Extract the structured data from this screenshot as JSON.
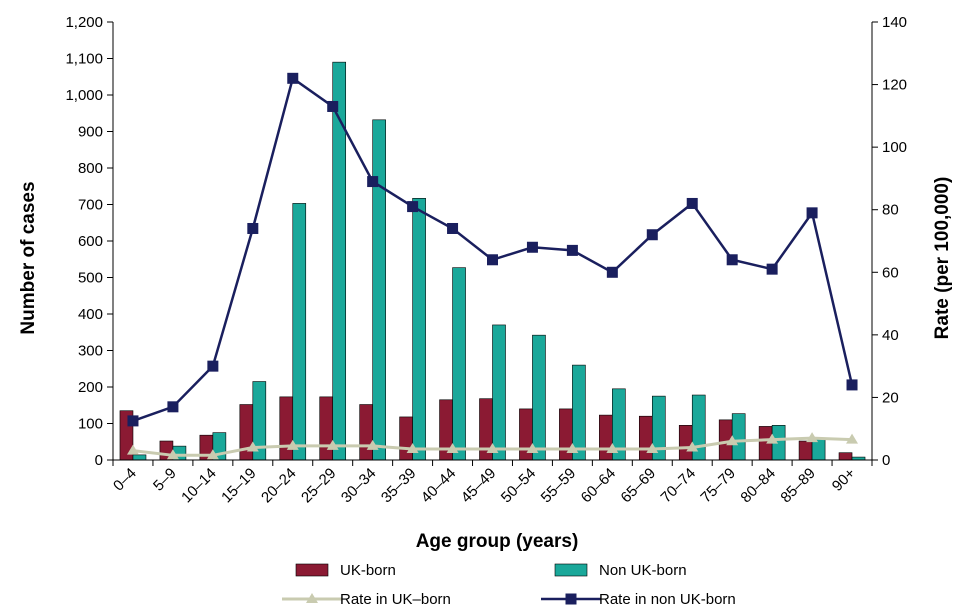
{
  "chart_data": {
    "type": "bar",
    "categories": [
      "0–4",
      "5–9",
      "10–14",
      "15–19",
      "20–24",
      "25–29",
      "30–34",
      "35–39",
      "40–44",
      "45–49",
      "50–54",
      "55–59",
      "60–64",
      "65–69",
      "70–74",
      "75–79",
      "80–84",
      "85–89",
      "90+"
    ],
    "series": [
      {
        "name": "UK-born",
        "kind": "bar",
        "axis": "left",
        "color": "#8b1a33",
        "values": [
          135,
          52,
          68,
          152,
          173,
          173,
          152,
          118,
          165,
          168,
          140,
          140,
          123,
          120,
          95,
          110,
          92,
          52,
          20
        ]
      },
      {
        "name": "Non UK-born",
        "kind": "bar",
        "axis": "left",
        "color": "#1aa89a",
        "values": [
          14,
          38,
          75,
          215,
          703,
          1090,
          932,
          717,
          527,
          370,
          342,
          260,
          195,
          175,
          178,
          127,
          95,
          60,
          8
        ]
      },
      {
        "name": "Rate in UK–born",
        "kind": "line",
        "axis": "right",
        "color": "#c9cbb0",
        "values": [
          3,
          1.5,
          1.5,
          4,
          4.5,
          4.5,
          4.5,
          3.5,
          3.5,
          3.5,
          3.5,
          3.5,
          3.5,
          3.5,
          4,
          6,
          6.5,
          7,
          6.5
        ]
      },
      {
        "name": "Rate in non UK-born",
        "kind": "line",
        "axis": "right",
        "color": "#1a1f5e",
        "values": [
          12.5,
          17,
          30,
          74,
          122,
          113,
          89,
          81,
          74,
          64,
          68,
          67,
          60,
          72,
          82,
          64,
          61,
          79,
          24
        ]
      }
    ],
    "xlabel": "Age group (years)",
    "ylabel": "Number of cases",
    "y2label": "Rate (per 100,000)",
    "ylim": [
      0,
      1200
    ],
    "y2lim": [
      0,
      140
    ],
    "yticks": [
      "0",
      "100",
      "200",
      "300",
      "400",
      "500",
      "600",
      "700",
      "800",
      "900",
      "1,000",
      "1,100",
      "1,200"
    ],
    "y2ticks": [
      "0",
      "20",
      "40",
      "60",
      "80",
      "100",
      "120",
      "140"
    ],
    "legend": [
      "UK-born",
      "Non UK-born",
      "Rate in UK–born",
      "Rate in non UK-born"
    ],
    "legend_position": "bottom",
    "grid": false
  }
}
